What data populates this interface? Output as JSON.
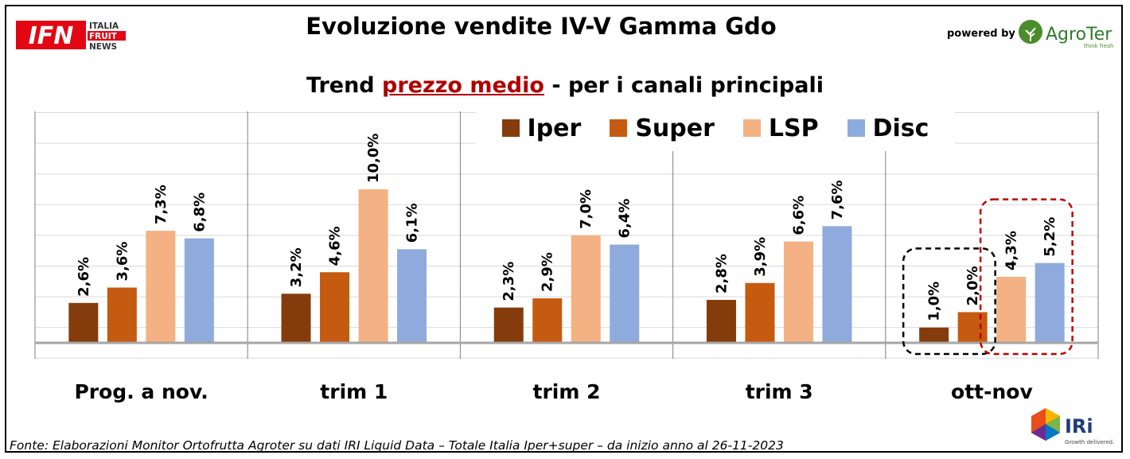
{
  "header": {
    "title": "Evoluzione vendite IV-V Gamma Gdo",
    "powered_by": "powered by",
    "ifn_logo": {
      "main": "IFN",
      "line1": "ITALIA",
      "line2": "FRUIT",
      "line3": "NEWS"
    },
    "agroter_logo": {
      "name": "AgroTer",
      "tagline": "think fresh"
    }
  },
  "subtitle": {
    "before": "Trend ",
    "highlight": "prezzo medio",
    "after": " - per i canali principali"
  },
  "footer": {
    "source": "Fonte: Elaborazioni Monitor Ortofrutta Agroter su dati IRI Liquid Data – Totale Italia Iper+super –  da inizio anno al 26-11-2023",
    "iri_logo": {
      "name": "IRi",
      "tagline": "Growth delivered."
    }
  },
  "colors": {
    "Iper": "#843c0c",
    "Super": "#c55a11",
    "LSP": "#f4b183",
    "Disc": "#8faadc",
    "highlight_black": "#000000",
    "highlight_red": "#c00000"
  },
  "chart_data": {
    "type": "bar",
    "categories": [
      "Prog. a nov.",
      "trim 1",
      "trim 2",
      "trim 3",
      "ott-nov"
    ],
    "series": [
      {
        "name": "Iper",
        "values": [
          2.6,
          3.2,
          2.3,
          2.8,
          1.0
        ],
        "labels": [
          "2,6%",
          "3,2%",
          "2,3%",
          "2,8%",
          "1,0%"
        ]
      },
      {
        "name": "Super",
        "values": [
          3.6,
          4.6,
          2.9,
          3.9,
          2.0
        ],
        "labels": [
          "3,6%",
          "4,6%",
          "2,9%",
          "3,9%",
          "2,0%"
        ]
      },
      {
        "name": "LSP",
        "values": [
          7.3,
          10.0,
          7.0,
          6.6,
          4.3
        ],
        "labels": [
          "7,3%",
          "10,0%",
          "7,0%",
          "6,6%",
          "4,3%"
        ]
      },
      {
        "name": "Disc",
        "values": [
          6.8,
          6.1,
          6.4,
          7.6,
          5.2
        ],
        "labels": [
          "6,8%",
          "6,1%",
          "6,4%",
          "7,6%",
          "5,2%"
        ]
      }
    ],
    "ylim": [
      -1,
      15
    ],
    "grid": true,
    "legend_position": "top",
    "annotations": [
      {
        "category": "ott-nov",
        "series": [
          "Iper",
          "Super"
        ],
        "style": "dashed",
        "color": "#000000"
      },
      {
        "category": "ott-nov",
        "series": [
          "LSP",
          "Disc"
        ],
        "style": "dashed",
        "color": "#c00000"
      }
    ]
  }
}
